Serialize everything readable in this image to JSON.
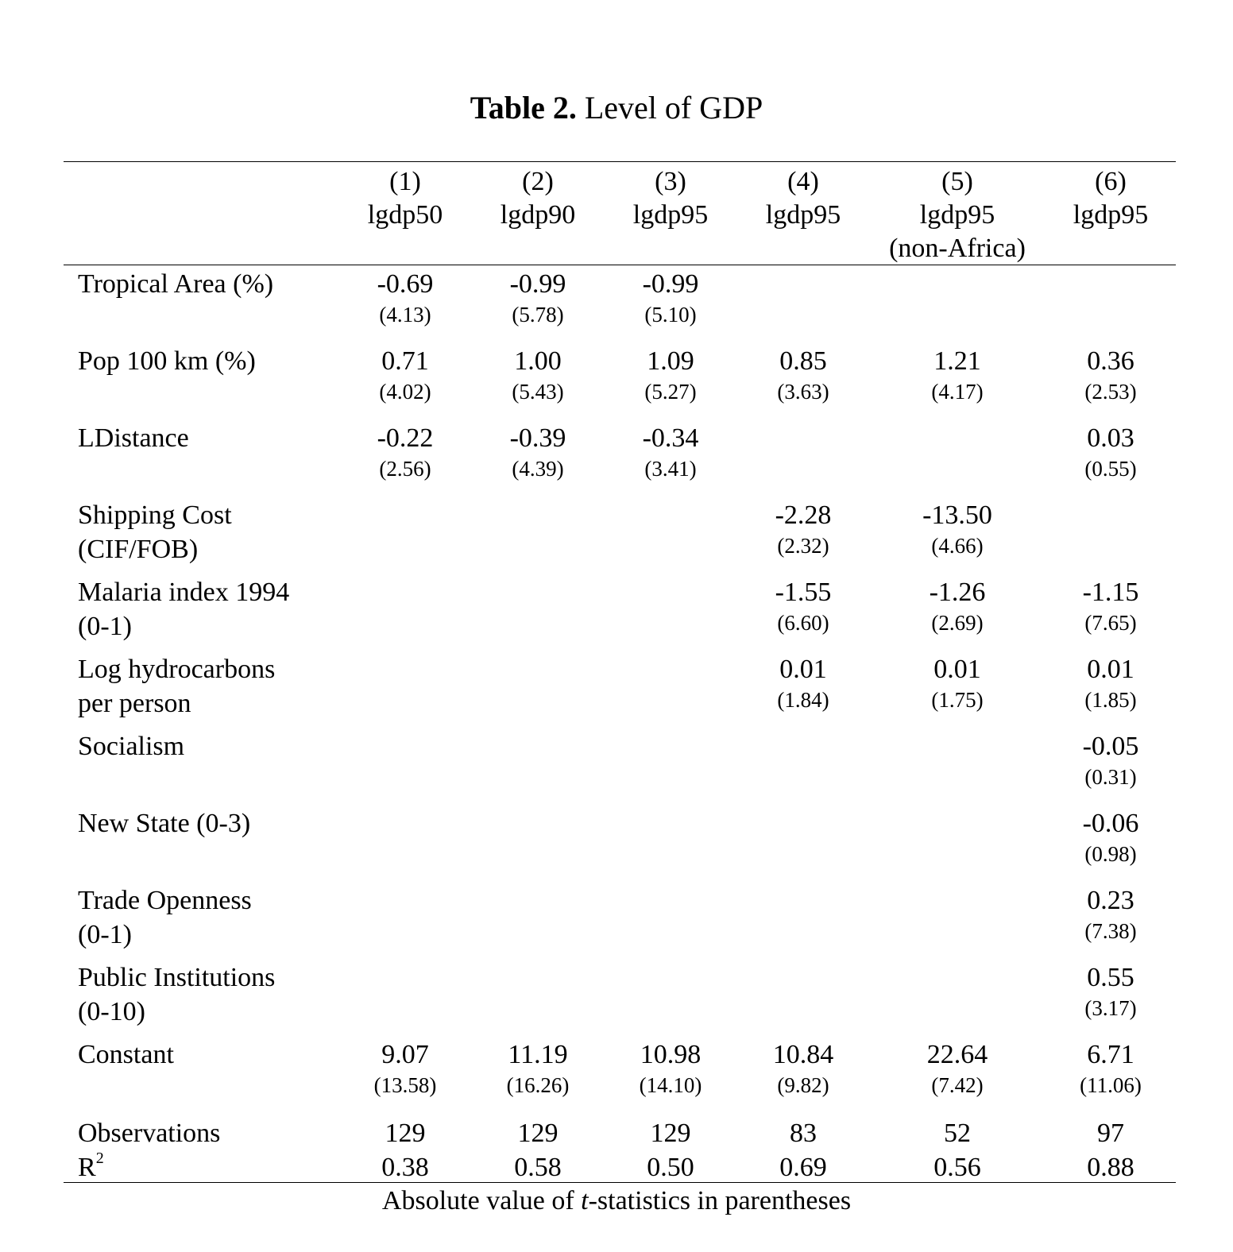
{
  "title": {
    "bold_part": "Table 2.",
    "rest": " Level of GDP"
  },
  "columns": [
    {
      "number": "(1)",
      "dep": "lgdp50",
      "note": ""
    },
    {
      "number": "(2)",
      "dep": "lgdp90",
      "note": ""
    },
    {
      "number": "(3)",
      "dep": "lgdp95",
      "note": ""
    },
    {
      "number": "(4)",
      "dep": "lgdp95",
      "note": ""
    },
    {
      "number": "(5)",
      "dep": "lgdp95",
      "note": "(non-Africa)"
    },
    {
      "number": "(6)",
      "dep": "lgdp95",
      "note": ""
    }
  ],
  "rows": [
    {
      "label": [
        "Tropical Area (%)"
      ],
      "coef": [
        "-0.69",
        "-0.99",
        "-0.99",
        "",
        "",
        ""
      ],
      "t": [
        "(4.13)",
        "(5.78)",
        "(5.10)",
        "",
        "",
        ""
      ]
    },
    {
      "label": [
        "Pop 100 km (%)"
      ],
      "coef": [
        "0.71",
        "1.00",
        "1.09",
        "0.85",
        "1.21",
        "0.36"
      ],
      "t": [
        "(4.02)",
        "(5.43)",
        "(5.27)",
        "(3.63)",
        "(4.17)",
        "(2.53)"
      ]
    },
    {
      "label": [
        "LDistance"
      ],
      "coef": [
        "-0.22",
        "-0.39",
        "-0.34",
        "",
        "",
        "0.03"
      ],
      "t": [
        "(2.56)",
        "(4.39)",
        "(3.41)",
        "",
        "",
        "(0.55)"
      ]
    },
    {
      "label": [
        "Shipping Cost",
        "(CIF/FOB)"
      ],
      "coef": [
        "",
        "",
        "",
        "-2.28",
        "-13.50",
        ""
      ],
      "t": [
        "",
        "",
        "",
        "(2.32)",
        "(4.66)",
        ""
      ]
    },
    {
      "label": [
        "Malaria index 1994",
        "(0-1)"
      ],
      "coef": [
        "",
        "",
        "",
        "-1.55",
        "-1.26",
        "-1.15"
      ],
      "t": [
        "",
        "",
        "",
        "(6.60)",
        "(2.69)",
        "(7.65)"
      ]
    },
    {
      "label": [
        "Log hydrocarbons",
        "per person"
      ],
      "coef": [
        "",
        "",
        "",
        "0.01",
        "0.01",
        "0.01"
      ],
      "t": [
        "",
        "",
        "",
        "(1.84)",
        "(1.75)",
        "(1.85)"
      ]
    },
    {
      "label": [
        "Socialism"
      ],
      "coef": [
        "",
        "",
        "",
        "",
        "",
        "-0.05"
      ],
      "t": [
        "",
        "",
        "",
        "",
        "",
        "(0.31)"
      ]
    },
    {
      "label": [
        "New State (0-3)"
      ],
      "coef": [
        "",
        "",
        "",
        "",
        "",
        "-0.06"
      ],
      "t": [
        "",
        "",
        "",
        "",
        "",
        "(0.98)"
      ]
    },
    {
      "label": [
        "Trade Openness",
        "(0-1)"
      ],
      "coef": [
        "",
        "",
        "",
        "",
        "",
        "0.23"
      ],
      "t": [
        "",
        "",
        "",
        "",
        "",
        "(7.38)"
      ]
    },
    {
      "label": [
        "Public Institutions",
        "(0-10)"
      ],
      "coef": [
        "",
        "",
        "",
        "",
        "",
        "0.55"
      ],
      "t": [
        "",
        "",
        "",
        "",
        "",
        "(3.17)"
      ]
    },
    {
      "label": [
        "Constant"
      ],
      "coef": [
        "9.07",
        "11.19",
        "10.98",
        "10.84",
        "22.64",
        "6.71"
      ],
      "t": [
        "(13.58)",
        "(16.26)",
        "(14.10)",
        "(9.82)",
        "(7.42)",
        "(11.06)"
      ]
    }
  ],
  "observations": {
    "label": "Observations",
    "values": [
      "129",
      "129",
      "129",
      "83",
      "52",
      "97"
    ]
  },
  "r2": {
    "label": "R",
    "sup": "2",
    "values": [
      "0.38",
      "0.58",
      "0.50",
      "0.69",
      "0.56",
      "0.88"
    ]
  },
  "footnote": {
    "before": "Absolute value of ",
    "italic": "t",
    "after": "-statistics in parentheses"
  }
}
